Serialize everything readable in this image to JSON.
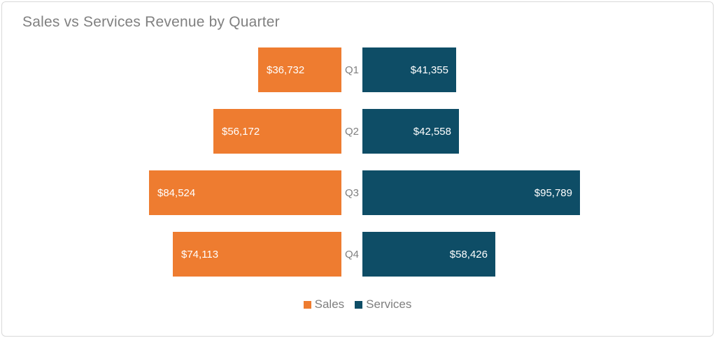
{
  "frame": {
    "background": "#ffffff",
    "border_color": "#d9d9d9"
  },
  "chart_data": {
    "type": "bar",
    "variant": "diverging-horizontal-tornado",
    "title": "Sales vs Services Revenue by Quarter",
    "title_color": "#808080",
    "categories": [
      "Q1",
      "Q2",
      "Q3",
      "Q4"
    ],
    "series": [
      {
        "name": "Sales",
        "color": "#ee7c30",
        "direction": "left",
        "values": [
          36732,
          56172,
          84524,
          74113
        ]
      },
      {
        "name": "Services",
        "color": "#0e4d66",
        "direction": "right",
        "values": [
          41355,
          42558,
          95789,
          58426
        ]
      }
    ],
    "data_labels": {
      "position": "inside-end",
      "format": "$#,##0",
      "text_color": "#ffffff",
      "texts": {
        "Sales": [
          "$36,732",
          "$56,172",
          "$84,524",
          "$74,113"
        ],
        "Services": [
          "$41,355",
          "$42,558",
          "$95,789",
          "$58,426"
        ]
      }
    },
    "category_label_color": "#7f7f7f",
    "value_axis_max": 100000,
    "pixels_per_axis_max": 325,
    "legend_position": "bottom",
    "legend_entries": [
      "Sales",
      "Services"
    ],
    "grid": "off"
  }
}
